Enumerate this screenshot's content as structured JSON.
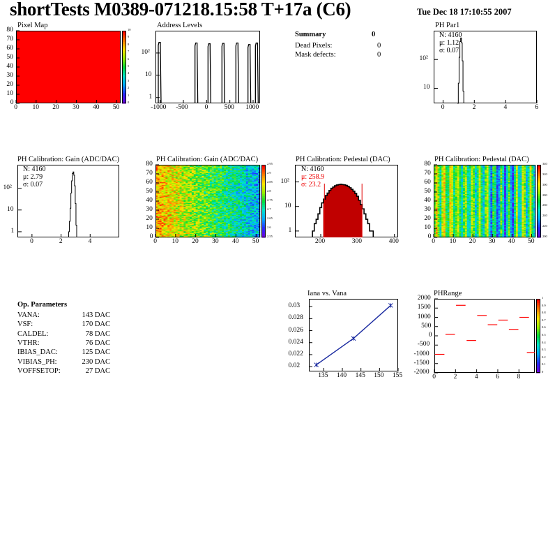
{
  "title": "shortTests M0389-071218.15:58 T+17a (C6)",
  "date": "Tue Dec 18 17:10:55 2007",
  "summary": {
    "title": "Summary",
    "total": "0",
    "rows": [
      {
        "label": "Dead Pixels:",
        "value": "0"
      },
      {
        "label": "Mask defects:",
        "value": "0"
      }
    ]
  },
  "op_params": {
    "title": "Op. Parameters",
    "rows": [
      {
        "name": "VANA:",
        "value": "143 DAC"
      },
      {
        "name": "VSF:",
        "value": "170 DAC"
      },
      {
        "name": "CALDEL:",
        "value": "78 DAC"
      },
      {
        "name": "VTHR:",
        "value": "76 DAC"
      },
      {
        "name": "IBIAS_DAC:",
        "value": "125 DAC"
      },
      {
        "name": "VIBIAS_PH:",
        "value": "230 DAC"
      },
      {
        "name": "VOFFSETOP:",
        "value": "27 DAC"
      }
    ]
  },
  "colors": {
    "red": "#ff0000",
    "hist": "#000000",
    "pedestal_fill": "#c00000",
    "fit_line": "#e00000",
    "graph": "#1a2aa0"
  },
  "chart_data": [
    {
      "id": "pixel_map",
      "type": "heatmap",
      "title": "Pixel Map",
      "xlim": [
        0,
        52
      ],
      "ylim": [
        0,
        80
      ],
      "xticks": [
        "0",
        "10",
        "20",
        "30",
        "40",
        "50"
      ],
      "yticks": [
        "0",
        "10",
        "20",
        "30",
        "40",
        "50",
        "60",
        "70",
        "80"
      ],
      "zlim": [
        0,
        10
      ],
      "zticks": [
        "0",
        "1",
        "2",
        "3",
        "4",
        "5",
        "6",
        "7",
        "8",
        "9",
        "10"
      ],
      "uniform_value": 10
    },
    {
      "id": "address_levels",
      "type": "bar",
      "title": "Address Levels",
      "xlim": [
        -1100,
        1150
      ],
      "log_y": true,
      "xticks": [
        "-1000",
        "-500",
        "0",
        "500",
        "1000"
      ],
      "yticks": [
        "1",
        "10",
        "10^2"
      ],
      "peaks": [
        {
          "x": -1010,
          "y": 300
        },
        {
          "x": -220,
          "y": 280
        },
        {
          "x": 60,
          "y": 260
        },
        {
          "x": 360,
          "y": 270
        },
        {
          "x": 660,
          "y": 280
        },
        {
          "x": 920,
          "y": 240
        },
        {
          "x": 1080,
          "y": 280
        }
      ]
    },
    {
      "id": "ph_par1",
      "type": "bar",
      "title": "PH Par1",
      "xlim": [
        -0.6,
        6
      ],
      "log_y": true,
      "xticks": [
        "0",
        "2",
        "4",
        "6"
      ],
      "yticks": [
        "10",
        "10^2"
      ],
      "stats": {
        "n": "N: 4160",
        "mean": "μ: 1.12",
        "sigma": "σ: 0.07"
      },
      "x": [
        0.95,
        1.0,
        1.05,
        1.1,
        1.15,
        1.2,
        1.25,
        1.3
      ],
      "values": [
        3,
        15,
        120,
        420,
        560,
        380,
        90,
        8
      ]
    },
    {
      "id": "ph_gain_1d",
      "type": "bar",
      "title": "PH Calibration: Gain (ADC/DAC)",
      "xlim": [
        -1,
        6
      ],
      "log_y": true,
      "xticks": [
        "0",
        "2",
        "4"
      ],
      "yticks": [
        "1",
        "10",
        "10^2"
      ],
      "stats": {
        "n": "N: 4160",
        "mean": "μ: 2.79",
        "sigma": "σ: 0.07"
      },
      "x": [
        2.55,
        2.6,
        2.65,
        2.7,
        2.75,
        2.8,
        2.85,
        2.9,
        2.95,
        3.0,
        3.05
      ],
      "values": [
        1,
        3,
        12,
        60,
        220,
        480,
        560,
        400,
        130,
        20,
        2
      ]
    },
    {
      "id": "ph_gain_map",
      "type": "heatmap",
      "title": "PH Calibration: Gain (ADC/DAC)",
      "xlim": [
        0,
        52
      ],
      "ylim": [
        0,
        80
      ],
      "xticks": [
        "0",
        "10",
        "20",
        "30",
        "40",
        "50"
      ],
      "yticks": [
        "0",
        "10",
        "20",
        "30",
        "40",
        "50",
        "60",
        "70",
        "80"
      ],
      "zticks": [
        "2.55",
        "2.6",
        "2.65",
        "2.7",
        "2.75",
        "2.8",
        "2.85",
        "2.9",
        "2.95"
      ]
    },
    {
      "id": "ph_pedestal_1d",
      "type": "bar",
      "title": "PH Calibration: Pedestal (DAC)",
      "xlim": [
        130,
        410
      ],
      "log_y": true,
      "xticks": [
        "200",
        "300",
        "400"
      ],
      "yticks": [
        "1",
        "10",
        "10^2"
      ],
      "stats": {
        "n": "N: 4160",
        "mean": "μ: 258.9",
        "sigma": "σ: 23.2"
      },
      "fit_range": [
        210,
        312
      ],
      "x": [
        180,
        185,
        190,
        195,
        200,
        205,
        210,
        215,
        220,
        225,
        230,
        235,
        240,
        245,
        250,
        255,
        260,
        265,
        270,
        275,
        280,
        285,
        290,
        295,
        300,
        305,
        310,
        315,
        320,
        325,
        330,
        335,
        340
      ],
      "values": [
        1,
        2,
        3,
        5,
        9,
        14,
        20,
        28,
        35,
        45,
        55,
        62,
        70,
        75,
        78,
        80,
        78,
        76,
        72,
        66,
        58,
        50,
        42,
        34,
        26,
        18,
        12,
        8,
        5,
        3,
        2,
        1,
        1
      ]
    },
    {
      "id": "ph_pedestal_map",
      "type": "heatmap",
      "title": "PH Calibration: Pedestal (DAC)",
      "xlim": [
        0,
        52
      ],
      "ylim": [
        0,
        80
      ],
      "xticks": [
        "0",
        "10",
        "20",
        "30",
        "40",
        "50"
      ],
      "yticks": [
        "0",
        "10",
        "20",
        "30",
        "40",
        "50",
        "60",
        "70",
        "80"
      ],
      "zticks": [
        "200",
        "220",
        "240",
        "260",
        "280",
        "300",
        "320",
        "340"
      ]
    },
    {
      "id": "iana_vana",
      "type": "line",
      "title": "Iana vs. Vana",
      "xlim": [
        131,
        155
      ],
      "ylim": [
        0.0192,
        0.0313
      ],
      "xticks": [
        "135",
        "140",
        "145",
        "150",
        "155"
      ],
      "yticks": [
        "0.02",
        "0.022",
        "0.024",
        "0.026",
        "0.028",
        "0.03"
      ],
      "x": [
        133,
        143,
        153
      ],
      "y": [
        0.0203,
        0.0247,
        0.0302
      ]
    },
    {
      "id": "ph_range",
      "type": "scatter",
      "title": "PHRange",
      "xlim": [
        0,
        9.5
      ],
      "ylim": [
        -2000,
        2000
      ],
      "xticks": [
        "0",
        "2",
        "4",
        "6",
        "8"
      ],
      "yticks": [
        "2000",
        "1500",
        "1000",
        "500",
        "0",
        "-500",
        "-1000",
        "-1500",
        "-2000"
      ],
      "zticks": [
        "0",
        "0.1",
        "0.2",
        "0.3",
        "0.4",
        "0.5",
        "0.6",
        "0.7",
        "0.8",
        "0.9",
        "1"
      ],
      "x": [
        0.5,
        1.5,
        2.5,
        3.5,
        4.5,
        5.5,
        6.5,
        7.5,
        8.5,
        9.2
      ],
      "y": [
        -1000,
        80,
        1650,
        -250,
        1100,
        600,
        850,
        350,
        1000,
        -900
      ]
    }
  ]
}
